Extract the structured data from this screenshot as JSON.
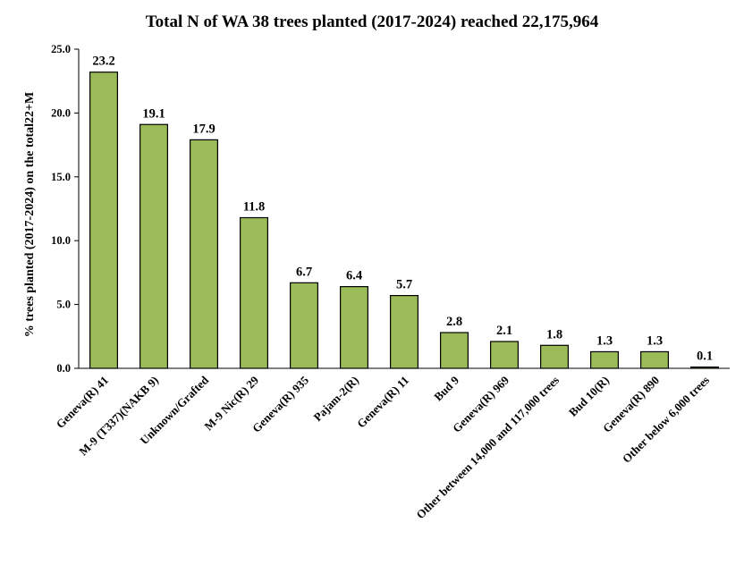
{
  "chart_data": {
    "type": "bar",
    "title": "Total N of WA 38 trees planted (2017-2024) reached 22,175,964",
    "xlabel": "",
    "ylabel": "% trees planted (2017-2024) on the total22+M",
    "ylim": [
      0,
      25
    ],
    "yticks": [
      "0.0",
      "5.0",
      "10.0",
      "15.0",
      "20.0",
      "25.0"
    ],
    "grid": false,
    "bar_color": "#9BBB59",
    "categories": [
      "Geneva(R) 41",
      "M-9 (T337)(NAKB 9)",
      "Unknown/Grafted",
      "M-9 Nic(R) 29",
      "Geneva(R) 935",
      "Pajam-2(R)",
      "Geneva(R) 11",
      "Bud 9",
      "Geneva(R) 969",
      "Other between 14,000 and  117,000 trees",
      "Bud 10(R)",
      "Geneva(R) 890",
      "Other below 6,000 trees"
    ],
    "values": [
      23.2,
      19.1,
      17.9,
      11.8,
      6.7,
      6.4,
      5.7,
      2.8,
      2.1,
      1.8,
      1.3,
      1.3,
      0.1
    ],
    "data_labels": [
      "23.2",
      "19.1",
      "17.9",
      "11.8",
      "6.7",
      "6.4",
      "5.7",
      "2.8",
      "2.1",
      "1.8",
      "1.3",
      "1.3",
      "0.1"
    ]
  }
}
